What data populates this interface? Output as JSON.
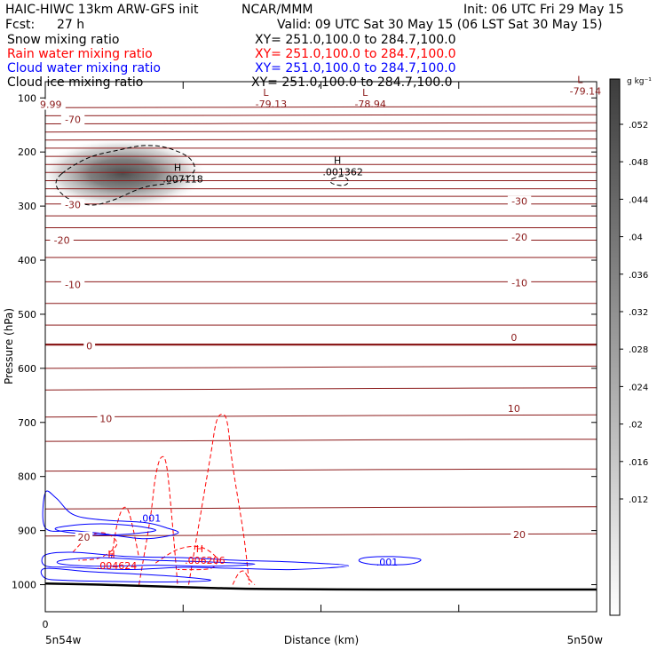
{
  "header": {
    "model": "HAIC-HIWC 13km ARW-GFS init",
    "org": "NCAR/MMM",
    "init": "Init: 06 UTC Fri 29 May 15",
    "fcst_label": "Fcst:",
    "fcst_value": "27 h",
    "valid": "Valid: 09 UTC Sat 30 May 15 (06 LST Sat 30 May 15)"
  },
  "fields": [
    {
      "name": "Snow mixing ratio",
      "xy": "XY= 251.0,100.0 to 284.7,100.0",
      "color": "#000000"
    },
    {
      "name": "Rain water mixing ratio",
      "xy": "XY= 251.0,100.0 to 284.7,100.0",
      "color": "#ff0000"
    },
    {
      "name": "Cloud water mixing ratio",
      "xy": "XY= 251.0,100.0 to 284.7,100.0",
      "color": "#0000ff"
    },
    {
      "name": "Cloud ice mixing ratio",
      "xy": "XY= 251.0,100.0 to 284.7,100.0",
      "color": "#000000"
    }
  ],
  "colors": {
    "temperature": "#8b1a1a",
    "rain": "#ff0000",
    "cloud_water": "#0000ff",
    "snow": "#000000",
    "terrain": "#000000"
  },
  "chart_data": {
    "type": "cross-section",
    "xlabel": "Distance (km)",
    "ylabel": "Pressure (hPa)",
    "x_start_label": "5n54w",
    "x_end_label": "5n50w",
    "x_zero_label": "0",
    "ylim": [
      1050,
      70
    ],
    "yticks": [
      100,
      200,
      300,
      400,
      500,
      600,
      700,
      800,
      900,
      1000
    ],
    "xtick_fractions": [
      0,
      0.25,
      0.5,
      0.75,
      1
    ],
    "colorbar": {
      "unit": "g kg⁻¹",
      "ticks": [
        ".052",
        ".048",
        ".044",
        ".04",
        ".036",
        ".032",
        ".028",
        ".024",
        ".02",
        ".016",
        ".012"
      ]
    },
    "temperature_contour_labels": [
      {
        "value": "9.99",
        "x": 0.01,
        "p": 112
      },
      {
        "value": "-70",
        "x": 0.05,
        "p": 140
      },
      {
        "value": "-30",
        "x": 0.05,
        "p": 297
      },
      {
        "value": "-20",
        "x": 0.03,
        "p": 363
      },
      {
        "value": "-10",
        "x": 0.05,
        "p": 445
      },
      {
        "value": "0",
        "x": 0.08,
        "p": 558
      },
      {
        "value": "10",
        "x": 0.11,
        "p": 693
      },
      {
        "value": "20",
        "x": 0.07,
        "p": 912
      },
      {
        "value": "-30",
        "x": 0.86,
        "p": 291
      },
      {
        "value": "-20",
        "x": 0.86,
        "p": 357
      },
      {
        "value": "-10",
        "x": 0.86,
        "p": 442
      },
      {
        "value": "0",
        "x": 0.85,
        "p": 543
      },
      {
        "value": "10",
        "x": 0.85,
        "p": 674
      },
      {
        "value": "20",
        "x": 0.86,
        "p": 907
      }
    ],
    "extrema": [
      {
        "kind": "L",
        "value": "-79.13",
        "x": 0.4,
        "p": 106,
        "color": "temperature"
      },
      {
        "kind": "L",
        "value": "-78.94",
        "x": 0.58,
        "p": 106,
        "color": "temperature"
      },
      {
        "kind": "L",
        "value": "-79.14",
        "x": 0.97,
        "p": 82,
        "color": "temperature"
      },
      {
        "kind": "H",
        "value": ".007118",
        "x": 0.24,
        "p": 245,
        "color": "snow"
      },
      {
        "kind": "H",
        "value": ".001362",
        "x": 0.53,
        "p": 232,
        "color": "snow"
      },
      {
        "kind": "H",
        "value": ".004624",
        "x": 0.12,
        "p": 960,
        "color": "rain"
      },
      {
        "kind": "H",
        "value": ".006206",
        "x": 0.28,
        "p": 950,
        "color": "rain"
      }
    ],
    "cloud_water_labels": [
      {
        "value": ".001",
        "x": 0.19,
        "p": 877
      },
      {
        "value": ".001",
        "x": 0.62,
        "p": 958
      }
    ],
    "cloud_water_contours": [
      [
        [
          0.0,
          830
        ],
        [
          0.02,
          840
        ],
        [
          0.05,
          870
        ],
        [
          0.1,
          880
        ],
        [
          0.18,
          885
        ],
        [
          0.22,
          895
        ],
        [
          0.24,
          905
        ],
        [
          0.18,
          915
        ],
        [
          0.1,
          905
        ],
        [
          0.05,
          900
        ],
        [
          0.0,
          895
        ]
      ],
      [
        [
          0.02,
          895
        ],
        [
          0.08,
          888
        ],
        [
          0.15,
          890
        ],
        [
          0.2,
          900
        ],
        [
          0.12,
          908
        ],
        [
          0.04,
          903
        ]
      ],
      [
        [
          0.0,
          945
        ],
        [
          0.05,
          940
        ],
        [
          0.15,
          948
        ],
        [
          0.25,
          950
        ],
        [
          0.35,
          955
        ],
        [
          0.45,
          958
        ],
        [
          0.55,
          965
        ],
        [
          0.45,
          972
        ],
        [
          0.35,
          970
        ],
        [
          0.25,
          968
        ],
        [
          0.15,
          972
        ],
        [
          0.05,
          968
        ],
        [
          0.0,
          965
        ]
      ],
      [
        [
          0.03,
          955
        ],
        [
          0.1,
          950
        ],
        [
          0.2,
          955
        ],
        [
          0.3,
          958
        ],
        [
          0.38,
          962
        ],
        [
          0.3,
          966
        ],
        [
          0.2,
          964
        ],
        [
          0.1,
          966
        ],
        [
          0.03,
          962
        ]
      ],
      [
        [
          0.58,
          950
        ],
        [
          0.63,
          948
        ],
        [
          0.68,
          953
        ],
        [
          0.66,
          962
        ],
        [
          0.6,
          963
        ],
        [
          0.57,
          957
        ]
      ],
      [
        [
          0.0,
          970
        ],
        [
          0.08,
          976
        ],
        [
          0.16,
          980
        ],
        [
          0.24,
          985
        ],
        [
          0.3,
          992
        ],
        [
          0.22,
          995
        ],
        [
          0.12,
          994
        ],
        [
          0.04,
          992
        ],
        [
          0.0,
          988
        ]
      ]
    ],
    "rain_contours": [
      [
        [
          0.26,
          1000
        ],
        [
          0.28,
          880
        ],
        [
          0.3,
          760
        ],
        [
          0.31,
          700
        ],
        [
          0.32,
          685
        ],
        [
          0.33,
          700
        ],
        [
          0.34,
          780
        ],
        [
          0.36,
          910
        ],
        [
          0.37,
          1000
        ]
      ],
      [
        [
          0.17,
          1000
        ],
        [
          0.19,
          880
        ],
        [
          0.2,
          800
        ],
        [
          0.21,
          765
        ],
        [
          0.22,
          780
        ],
        [
          0.23,
          880
        ],
        [
          0.24,
          1000
        ]
      ],
      [
        [
          0.12,
          950
        ],
        [
          0.13,
          890
        ],
        [
          0.14,
          860
        ],
        [
          0.15,
          862
        ],
        [
          0.16,
          900
        ],
        [
          0.17,
          950
        ]
      ],
      [
        [
          0.05,
          940
        ],
        [
          0.08,
          910
        ],
        [
          0.11,
          905
        ],
        [
          0.13,
          925
        ],
        [
          0.1,
          950
        ],
        [
          0.06,
          955
        ]
      ],
      [
        [
          0.2,
          960
        ],
        [
          0.24,
          935
        ],
        [
          0.28,
          930
        ],
        [
          0.31,
          950
        ],
        [
          0.3,
          970
        ],
        [
          0.24,
          972
        ]
      ],
      [
        [
          0.34,
          1000
        ],
        [
          0.35,
          980
        ],
        [
          0.36,
          975
        ],
        [
          0.37,
          990
        ],
        [
          0.38,
          1000
        ]
      ]
    ],
    "snow_contours": [
      [
        [
          0.03,
          240
        ],
        [
          0.08,
          210
        ],
        [
          0.14,
          195
        ],
        [
          0.18,
          188
        ],
        [
          0.22,
          192
        ],
        [
          0.26,
          210
        ],
        [
          0.27,
          235
        ],
        [
          0.24,
          255
        ],
        [
          0.18,
          265
        ],
        [
          0.12,
          290
        ],
        [
          0.08,
          298
        ],
        [
          0.04,
          285
        ],
        [
          0.02,
          262
        ]
      ],
      [
        [
          0.52,
          250
        ],
        [
          0.54,
          245
        ],
        [
          0.55,
          255
        ],
        [
          0.54,
          262
        ],
        [
          0.52,
          258
        ]
      ]
    ],
    "terrain": [
      [
        0.0,
        998
      ],
      [
        0.1,
        1000
      ],
      [
        0.2,
        1003
      ],
      [
        0.3,
        1006
      ],
      [
        0.4,
        1008
      ],
      [
        0.6,
        1009
      ],
      [
        0.8,
        1009
      ],
      [
        1.0,
        1009
      ]
    ]
  }
}
